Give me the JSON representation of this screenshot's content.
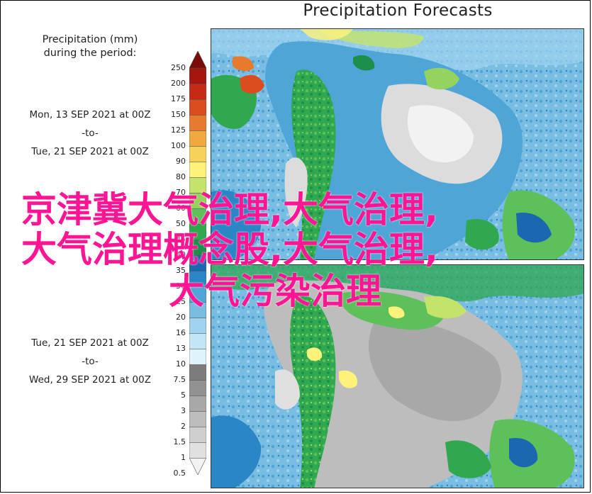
{
  "title": "Precipitation Forecasts",
  "legend": {
    "title_line1": "Precipitation (mm)",
    "title_line2": "during the period:",
    "colors": [
      "#f2f2f2",
      "#e0e0e0",
      "#cfcfcf",
      "#bdbdbd",
      "#a8a8a8",
      "#929292",
      "#7c7c7c",
      "#dff3fb",
      "#c3e6f6",
      "#9fd3ef",
      "#79bde3",
      "#4fa5d6",
      "#2a86c4",
      "#1b67b0",
      "#1d8f4a",
      "#2fa84f",
      "#5dc05a",
      "#93d35e",
      "#c4e36b",
      "#fff27a",
      "#f7d25a",
      "#f1a83f",
      "#e87b2b",
      "#db4d1f",
      "#c62a17",
      "#a4160f",
      "#7a0c0a"
    ],
    "ticks": [
      "250",
      "200",
      "175",
      "150",
      "125",
      "100",
      "90",
      "80",
      "70",
      "60",
      "50",
      "45",
      "40",
      "35",
      "30",
      "25",
      "20",
      "16",
      "13",
      "10",
      "7.5",
      "5",
      "3",
      "2",
      "1.5",
      "1",
      "0.5"
    ]
  },
  "periods": [
    {
      "start": "Mon, 13 SEP 2021 at 00Z",
      "sep": "-to-",
      "end": "Tue, 21 SEP 2021 at 00Z"
    },
    {
      "start": "Tue, 21 SEP 2021 at 00Z",
      "sep": "-to-",
      "end": "Wed, 29 SEP 2021 at 00Z"
    }
  ],
  "overlay": {
    "line1": "京津冀大气治理,大气治理,",
    "line2": "大气治理概念股,大气治理,",
    "line3": "大气污染治理"
  }
}
